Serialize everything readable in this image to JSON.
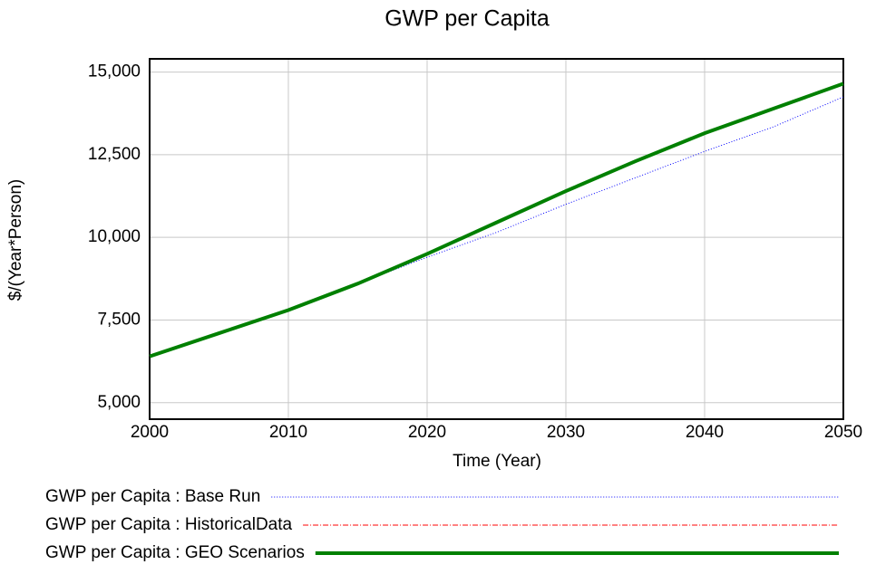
{
  "chart_data": {
    "type": "line",
    "title": "GWP per Capita",
    "x_label": "Time (Year)",
    "y_label": "$/(Year*Person)",
    "x": [
      2000,
      2005,
      2010,
      2015,
      2020,
      2025,
      2030,
      2035,
      2040,
      2045,
      2050
    ],
    "series": [
      {
        "name": "GWP per Capita : Base Run",
        "color": "#0000ff",
        "style": "dotted",
        "width": 1,
        "values": [
          6400,
          7100,
          7800,
          8600,
          9400,
          10150,
          11000,
          11800,
          12600,
          13350,
          14250
        ]
      },
      {
        "name": "GWP per Capita : HistoricalData",
        "color": "#ff0000",
        "style": "dashdot",
        "width": 1,
        "values": [
          null,
          null,
          null,
          null,
          null,
          null,
          null,
          null,
          null,
          null,
          null
        ]
      },
      {
        "name": "GWP per Capita : GEO Scenarios",
        "color": "#008000",
        "style": "solid",
        "width": 4,
        "values": [
          6400,
          7100,
          7800,
          8600,
          9500,
          10450,
          11400,
          12300,
          13150,
          13900,
          14650
        ]
      }
    ],
    "xlim": [
      2000,
      2050
    ],
    "xticks": [
      2000,
      2010,
      2020,
      2030,
      2040,
      2050
    ],
    "ylim": [
      4500,
      15400
    ],
    "yticks": [
      {
        "value": 5000,
        "label": "5,000"
      },
      {
        "value": 7500,
        "label": "7,500"
      },
      {
        "value": 10000,
        "label": "10,000"
      },
      {
        "value": 12500,
        "label": "12,500"
      },
      {
        "value": 15000,
        "label": "15,000"
      }
    ],
    "grid": true,
    "legend": "bottom"
  }
}
